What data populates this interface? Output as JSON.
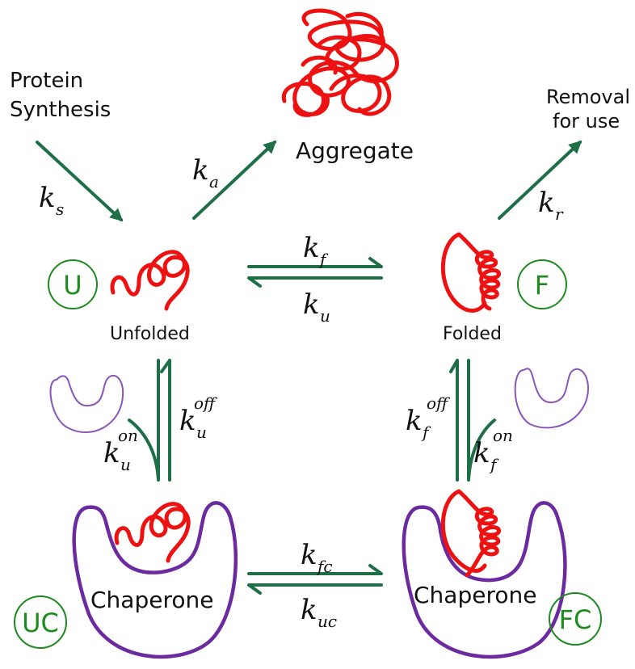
{
  "labels": {
    "synthesis_line1": "Protein",
    "synthesis_line2": "Synthesis",
    "aggregate": "Aggregate",
    "removal_line1": "Removal",
    "removal_line2": "for use",
    "unfolded": "Unfolded",
    "folded": "Folded",
    "chaperone_left": "Chaperone",
    "chaperone_right": "Chaperone"
  },
  "states": {
    "U": "U",
    "F": "F",
    "UC": "UC",
    "FC": "FC"
  },
  "rates": {
    "ks": {
      "main": "k",
      "sub": "s",
      "sup": ""
    },
    "ka": {
      "main": "k",
      "sub": "a",
      "sup": ""
    },
    "kr": {
      "main": "k",
      "sub": "r",
      "sup": ""
    },
    "kf": {
      "main": "k",
      "sub": "f",
      "sup": ""
    },
    "ku": {
      "main": "k",
      "sub": "u",
      "sup": ""
    },
    "ku_off": {
      "main": "k",
      "sub": "u",
      "sup": "off"
    },
    "ku_on": {
      "main": "k",
      "sub": "u",
      "sup": "on"
    },
    "kf_off": {
      "main": "k",
      "sub": "f",
      "sup": "off"
    },
    "kf_on": {
      "main": "k",
      "sub": "f",
      "sup": "on"
    },
    "kfc": {
      "main": "k",
      "sub": "fc",
      "sup": ""
    },
    "kuc": {
      "main": "k",
      "sub": "uc",
      "sup": ""
    }
  },
  "colors": {
    "arrow": "#1e6e46",
    "protein": "#ee1111",
    "chaperone": "#6b2aa0",
    "state_circle": "#1f8a1f"
  }
}
